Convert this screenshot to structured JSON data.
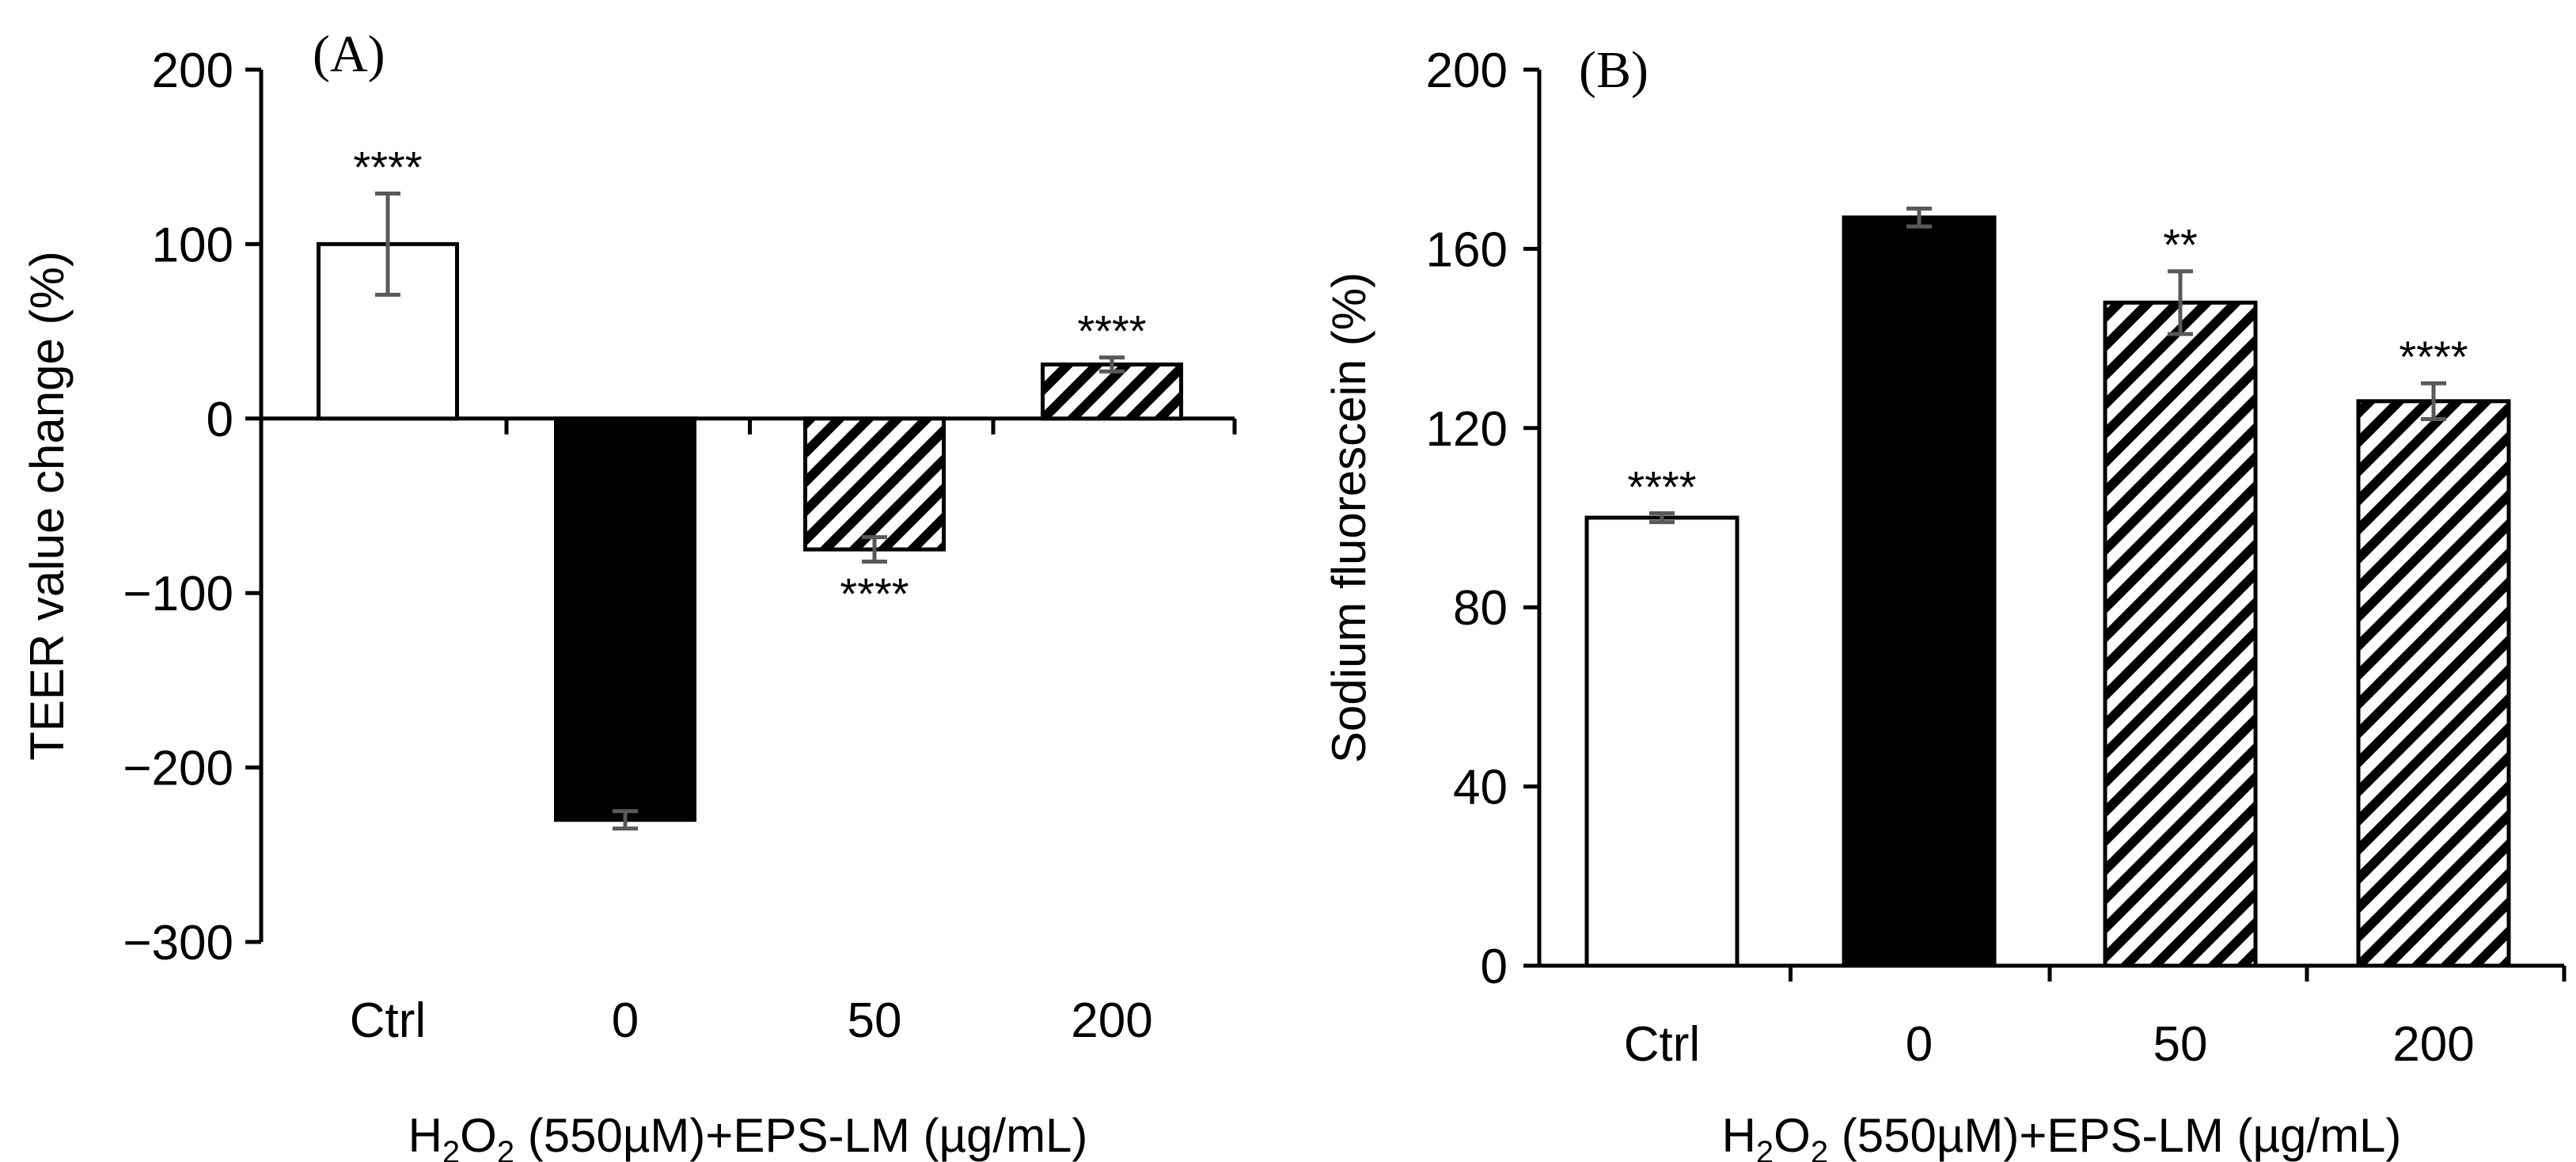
{
  "chart_data": [
    {
      "type": "bar",
      "panel_label": "(A)",
      "categories": [
        "Ctrl",
        "0",
        "50",
        "200"
      ],
      "values": [
        100,
        -230,
        -75,
        31
      ],
      "errors": [
        29,
        5,
        7,
        4
      ],
      "significance": [
        "****",
        "",
        "****",
        "****"
      ],
      "bar_styles": [
        "white",
        "black",
        "hatched",
        "hatched"
      ],
      "ylabel": "TEER value change (%)",
      "xlabel": {
        "pre": "H",
        "sub1": "2",
        "mid": "O",
        "sub2": "2",
        "post": " (550µM)+EPS-LM (µg/mL)"
      },
      "ylim": [
        -300,
        200
      ],
      "yticks": [
        200,
        100,
        0,
        -100,
        -200,
        -300
      ],
      "ytick_labels": [
        "200",
        "100",
        "0",
        "−100",
        "−200",
        "−300"
      ]
    },
    {
      "type": "bar",
      "panel_label": "(B)",
      "categories": [
        "Ctrl",
        "0",
        "50",
        "200"
      ],
      "values": [
        100,
        167,
        148,
        126
      ],
      "errors": [
        1,
        2,
        7,
        4
      ],
      "significance": [
        "****",
        "",
        "**",
        "****"
      ],
      "bar_styles": [
        "white",
        "black",
        "hatched",
        "hatched"
      ],
      "ylabel": "Sodium fluorescein (%)",
      "xlabel": {
        "pre": "H",
        "sub1": "2",
        "mid": "O",
        "sub2": "2",
        "post": " (550µM)+EPS-LM (µg/mL)"
      },
      "ylim": [
        0,
        200
      ],
      "yticks": [
        200,
        160,
        120,
        80,
        40,
        0
      ],
      "ytick_labels": [
        "200",
        "160",
        "120",
        "80",
        "40",
        "0"
      ]
    }
  ],
  "colors": {
    "axis": "#000000",
    "error_bar": "#595959",
    "bar_fill_dark": "#000000",
    "bar_fill_light": "#ffffff"
  }
}
